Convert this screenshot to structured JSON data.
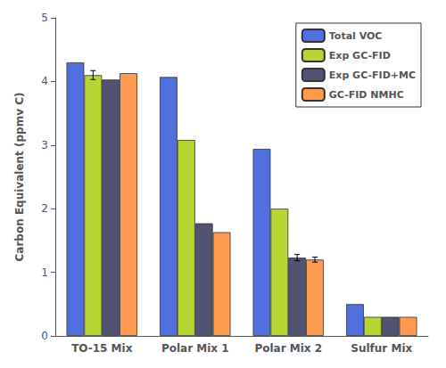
{
  "chart_data": {
    "type": "bar",
    "categories": [
      "TO-15 Mix",
      "Polar Mix 1",
      "Polar Mix 2",
      "Sulfur Mix"
    ],
    "series": [
      {
        "name": "Total VOC",
        "values": [
          4.3,
          4.07,
          2.94,
          0.5
        ],
        "errors": [
          0.0,
          0.0,
          0.0,
          0.0
        ]
      },
      {
        "name": "Exp GC-FID",
        "values": [
          4.1,
          3.08,
          2.0,
          0.3
        ],
        "errors": [
          0.07,
          0.0,
          0.0,
          0.0
        ]
      },
      {
        "name": "Exp GC-FID+MC",
        "values": [
          4.03,
          1.77,
          1.23,
          0.3
        ],
        "errors": [
          0.0,
          0.0,
          0.05,
          0.0
        ]
      },
      {
        "name": "GC-FID NMHC",
        "values": [
          4.13,
          1.63,
          1.2,
          0.3
        ],
        "errors": [
          0.0,
          0.0,
          0.04,
          0.0
        ]
      }
    ],
    "ylabel": "Carbon Equivalent (ppmv C)",
    "ylim": [
      0,
      5
    ],
    "yticks": [
      0,
      1,
      2,
      3,
      4,
      5
    ],
    "grid": false,
    "legend": "upper right"
  }
}
